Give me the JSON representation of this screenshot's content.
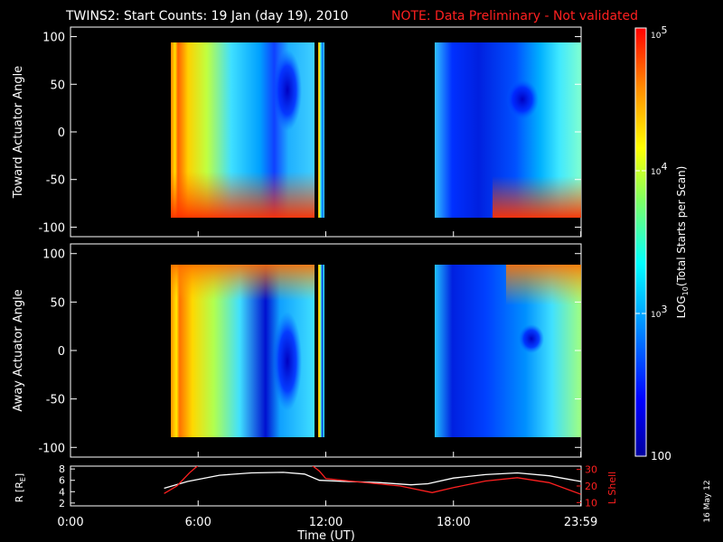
{
  "chart_data": {
    "type": "heatmap",
    "title": "TWINS2: Start Counts: 19 Jan (day  19), 2010",
    "note": "NOTE: Data Preliminary - Not validated",
    "x_axis": {
      "label": "Time (UT)",
      "ticks": [
        "0:00",
        "6:00",
        "12:00",
        "18:00",
        "23:59"
      ],
      "tick_hours": [
        0,
        6,
        12,
        18,
        23.983
      ],
      "range_hours": [
        0,
        24
      ]
    },
    "data_intervals_hours": [
      [
        4.4,
        11.4
      ],
      [
        11.6,
        12.0
      ],
      [
        16.7,
        23.9
      ]
    ],
    "panels": [
      {
        "name": "toward",
        "ylabel": "Toward Actuator Angle",
        "yticks": [
          100,
          50,
          0,
          -50,
          -100
        ],
        "ylim": [
          -110,
          110
        ],
        "angle_coverage": [
          -90,
          90
        ]
      },
      {
        "name": "away",
        "ylabel": "Away Actuator Angle",
        "yticks": [
          100,
          50,
          0,
          -50,
          -100
        ],
        "ylim": [
          -110,
          110
        ],
        "angle_coverage": [
          -90,
          90
        ]
      }
    ],
    "colorbar": {
      "label": "LOG10(Total Starts per Scan)",
      "label_base": "LOG",
      "label_sub": "10",
      "label_rest": "(Total Starts per Scan)",
      "tick_labels": [
        "10^5",
        "10^4",
        "10^3",
        "100"
      ],
      "tick_values": [
        100000,
        10000,
        1000,
        100
      ],
      "range": [
        100,
        100000
      ],
      "scale": "log",
      "colormap": "rainbow"
    },
    "orbit_panel": {
      "left_label": "R [R",
      "left_label_sub": "E",
      "left_label_end": "]",
      "left_ticks": [
        8,
        6,
        4,
        2
      ],
      "left_range": [
        1.5,
        8.5
      ],
      "right_label": "L Shell",
      "right_ticks": [
        30,
        20,
        10
      ],
      "right_tick_labels": [
        "30",
        "20",
        "10"
      ],
      "right_range": [
        8,
        32
      ],
      "series": [
        {
          "name": "R",
          "axis": "left",
          "color": "#ffffff",
          "x": [
            4.4,
            5.5,
            7,
            8.5,
            10,
            11,
            11.7,
            13,
            14.5,
            16,
            16.8,
            18,
            19.5,
            21,
            22.5,
            23.99
          ],
          "y": [
            4.6,
            5.8,
            6.9,
            7.3,
            7.4,
            7.1,
            6.0,
            5.8,
            5.6,
            5.2,
            5.4,
            6.4,
            7.0,
            7.3,
            6.8,
            5.8
          ]
        },
        {
          "name": "L Shell",
          "axis": "right",
          "color": "#ff2020",
          "x": [
            4.4,
            5.0,
            5.6,
            6.05,
            11.3,
            11.7,
            12.0,
            13.5,
            15.5,
            17.0,
            18.0,
            19.5,
            21.0,
            22.5,
            23.99
          ],
          "y": [
            15.5,
            20,
            28,
            33,
            33,
            29,
            24.5,
            22.5,
            20,
            16,
            19,
            23,
            25,
            22,
            15
          ]
        }
      ]
    },
    "date_stamp": "16 May 12"
  }
}
